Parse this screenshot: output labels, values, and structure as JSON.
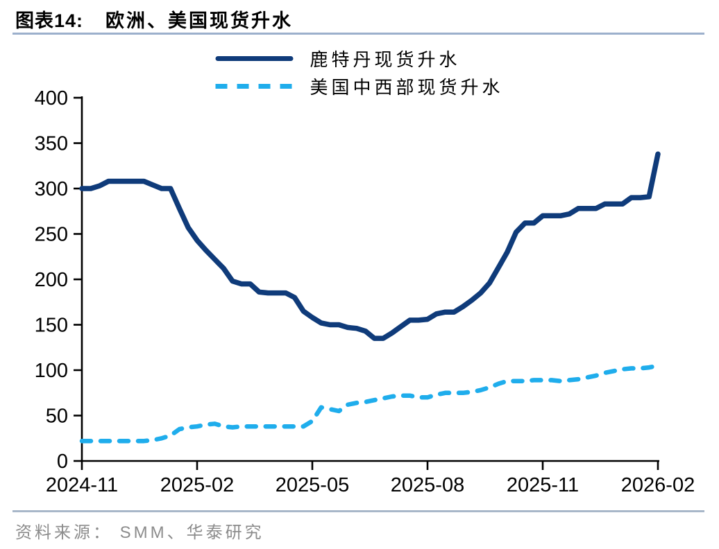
{
  "title": {
    "prefix": "图表14:",
    "text": "欧洲、美国现货升水"
  },
  "source": "资料来源： SMM、华泰研究",
  "colors": {
    "rotterdam_line": "#0f3b7a",
    "midwest_line": "#1fadec",
    "title_rule": "#9cb0cc",
    "footer_rule": "#a8b7c9",
    "axis": "#000000",
    "source_text": "#8c8c8c"
  },
  "legend": [
    {
      "label": "鹿特丹现货升水",
      "style": "solid"
    },
    {
      "label": "美国中西部现货升水",
      "style": "dashed"
    }
  ],
  "chart_data": {
    "type": "line",
    "title": "欧洲、美国现货升水",
    "xlabel": "",
    "ylabel": "",
    "ylim": [
      0,
      400
    ],
    "y_ticks": [
      0,
      50,
      100,
      150,
      200,
      250,
      300,
      350,
      400
    ],
    "x_ticks": [
      {
        "pos": 0.0,
        "label": "2024-11"
      },
      {
        "pos": 0.2,
        "label": "2025-02"
      },
      {
        "pos": 0.4,
        "label": "2025-05"
      },
      {
        "pos": 0.6,
        "label": "2025-08"
      },
      {
        "pos": 0.8,
        "label": "2025-11"
      },
      {
        "pos": 1.0,
        "label": "2026-02"
      }
    ],
    "x_unit": "weekly samples from 2024-11 to 2026-02",
    "grid": false,
    "legend_position": "top-center",
    "series": [
      {
        "name": "鹿特丹现货升水",
        "color": "#0f3b7a",
        "style": "solid",
        "values": [
          300,
          300,
          303,
          308,
          308,
          308,
          308,
          308,
          304,
          300,
          300,
          278,
          257,
          243,
          232,
          222,
          212,
          198,
          195,
          195,
          186,
          185,
          185,
          185,
          180,
          165,
          158,
          152,
          150,
          150,
          147,
          146,
          143,
          135,
          135,
          141,
          148,
          155,
          155,
          156,
          162,
          164,
          164,
          170,
          177,
          185,
          196,
          213,
          230,
          252,
          262,
          262,
          270,
          270,
          270,
          272,
          278,
          278,
          278,
          283,
          283,
          283,
          290,
          290,
          291,
          338
        ]
      },
      {
        "name": "美国中西部现货升水",
        "color": "#1fadec",
        "style": "dashed",
        "values": [
          22,
          22,
          22,
          22,
          22,
          22,
          22,
          22,
          23,
          25,
          28,
          35,
          37,
          38,
          40,
          41,
          38,
          37,
          38,
          38,
          38,
          38,
          38,
          38,
          38,
          38,
          44,
          59,
          57,
          55,
          62,
          64,
          65,
          67,
          69,
          71,
          72,
          72,
          70,
          70,
          73,
          75,
          75,
          75,
          76,
          78,
          81,
          85,
          88,
          88,
          88,
          89,
          89,
          89,
          88,
          89,
          90,
          92,
          94,
          97,
          99,
          101,
          102,
          102,
          103,
          105
        ]
      }
    ]
  }
}
